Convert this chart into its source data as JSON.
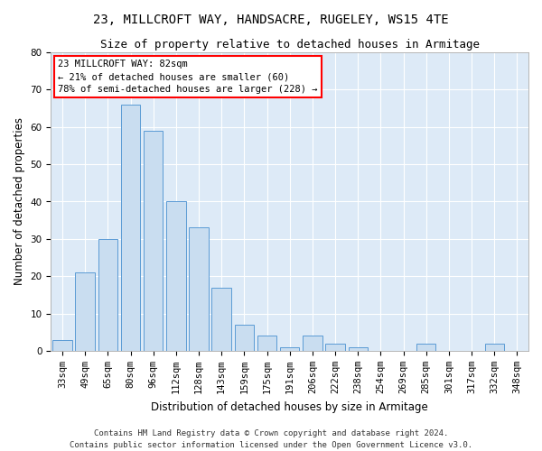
{
  "title1": "23, MILLCROFT WAY, HANDSACRE, RUGELEY, WS15 4TE",
  "title2": "Size of property relative to detached houses in Armitage",
  "xlabel": "Distribution of detached houses by size in Armitage",
  "ylabel": "Number of detached properties",
  "categories": [
    "33sqm",
    "49sqm",
    "65sqm",
    "80sqm",
    "96sqm",
    "112sqm",
    "128sqm",
    "143sqm",
    "159sqm",
    "175sqm",
    "191sqm",
    "206sqm",
    "222sqm",
    "238sqm",
    "254sqm",
    "269sqm",
    "285sqm",
    "301sqm",
    "317sqm",
    "332sqm",
    "348sqm"
  ],
  "values": [
    3,
    21,
    30,
    66,
    59,
    40,
    33,
    17,
    7,
    4,
    1,
    4,
    2,
    1,
    0,
    0,
    2,
    0,
    0,
    2,
    0
  ],
  "bar_color": "#c9ddf0",
  "bar_edge_color": "#5b9bd5",
  "ylim": [
    0,
    80
  ],
  "yticks": [
    0,
    10,
    20,
    30,
    40,
    50,
    60,
    70,
    80
  ],
  "annotation_line1": "23 MILLCROFT WAY: 82sqm",
  "annotation_line2": "← 21% of detached houses are smaller (60)",
  "annotation_line3": "78% of semi-detached houses are larger (228) →",
  "footer1": "Contains HM Land Registry data © Crown copyright and database right 2024.",
  "footer2": "Contains public sector information licensed under the Open Government Licence v3.0.",
  "fig_bg_color": "#ffffff",
  "plot_bg_color": "#ddeaf7",
  "grid_color": "#ffffff",
  "title1_fontsize": 10,
  "title2_fontsize": 9,
  "xlabel_fontsize": 8.5,
  "ylabel_fontsize": 8.5,
  "tick_fontsize": 7.5,
  "annotation_fontsize": 7.5,
  "footer_fontsize": 6.5
}
